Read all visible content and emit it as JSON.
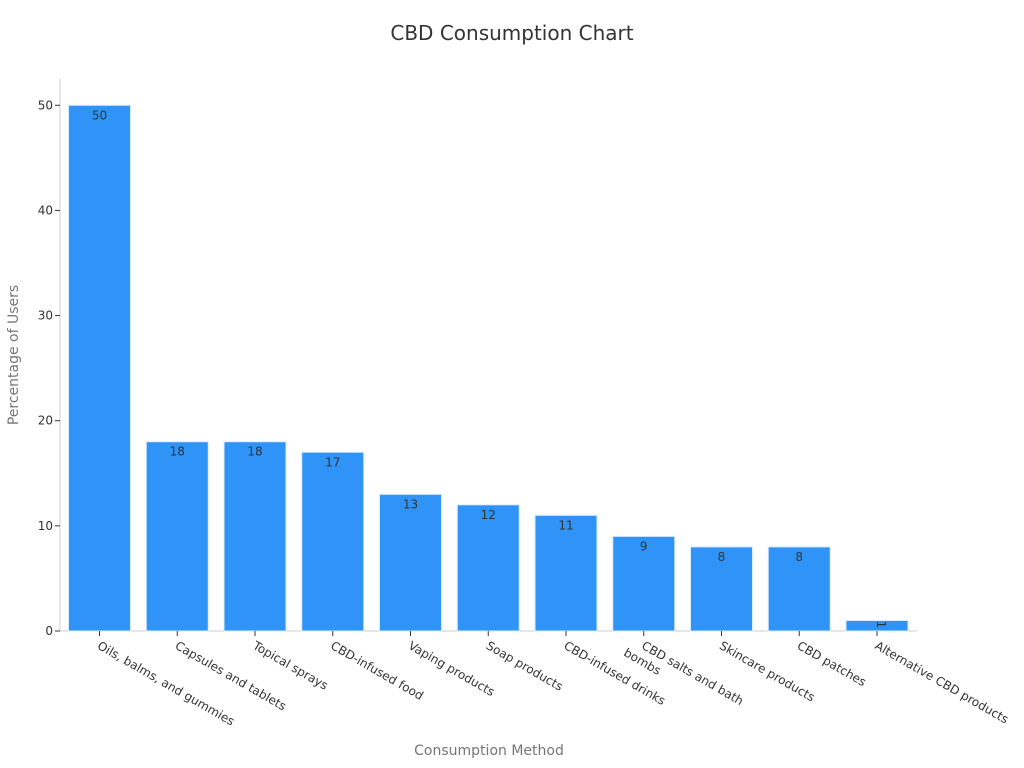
{
  "colors": {
    "bar": "#2f93f7",
    "bar_edge": "#d9ecff",
    "axis": "#cccccc",
    "text": "#333333",
    "axis_title": "#757575"
  },
  "chart_data": {
    "type": "bar",
    "title": "CBD Consumption Chart",
    "xlabel": "Consumption Method",
    "ylabel": "Percentage of Users",
    "categories": [
      "Oils, balms, and gummies",
      "Capsules and tablets",
      "Topical sprays",
      "CBD-infused food",
      "Vaping products",
      "Soap products",
      "CBD-infused drinks",
      "CBD salts and bath bombs",
      "Skincare products",
      "CBD patches",
      "Alternative CBD products"
    ],
    "values": [
      50,
      18,
      18,
      17,
      13,
      12,
      11,
      9,
      8,
      8,
      1
    ],
    "ylim": [
      0,
      52.5
    ],
    "yticks": [
      0,
      10,
      20,
      30,
      40,
      50
    ],
    "grid": false,
    "legend": "none"
  }
}
